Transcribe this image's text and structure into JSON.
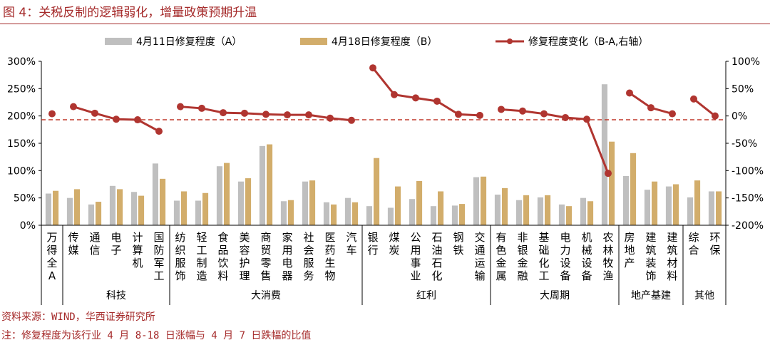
{
  "title": "图 4：关税反制的逻辑弱化，增量政策预期升温",
  "source": "资料来源：WIND，华西证券研究所",
  "note": "注：修复程度为该行业 4 月 8-18 日涨幅与 4 月 7 日跌幅的比值",
  "colors": {
    "s1": "#bfbfbf",
    "s2": "#d2ad6b",
    "line": "#b03530",
    "ref": "#c0392b",
    "title": "#a52a2a"
  },
  "chart_data": {
    "type": "bar",
    "legend_position": "top",
    "grid": false,
    "categories": [
      "万得全A",
      "传媒",
      "通信",
      "电子",
      "计算机",
      "国防军工",
      "纺织服饰",
      "轻工制造",
      "食品饮料",
      "美容护理",
      "商贸零售",
      "家用电器",
      "社会服务",
      "医药生物",
      "汽车",
      "银行",
      "煤炭",
      "公用事业",
      "石油石化",
      "钢铁",
      "交通运输",
      "有色金属",
      "非银金融",
      "基础化工",
      "电力设备",
      "机械设备",
      "农林牧渔",
      "房地产",
      "建筑装饰",
      "建筑材料",
      "综合",
      "环保"
    ],
    "series": [
      {
        "name": "4月11日修复程度（A）",
        "axis": "left",
        "values": [
          58,
          50,
          38,
          72,
          61,
          113,
          45,
          45,
          108,
          80,
          145,
          44,
          80,
          42,
          50,
          35,
          32,
          48,
          35,
          36,
          88,
          56,
          46,
          51,
          38,
          50,
          258,
          90,
          65,
          71,
          51,
          62
        ]
      },
      {
        "name": "4月18日修复程度（B）",
        "axis": "left",
        "values": [
          63,
          66,
          43,
          66,
          54,
          85,
          62,
          59,
          114,
          86,
          148,
          46,
          82,
          38,
          42,
          123,
          71,
          81,
          62,
          39,
          89,
          68,
          55,
          55,
          35,
          44,
          153,
          132,
          80,
          75,
          82,
          62
        ]
      },
      {
        "name": "修复程度变化（B-A,右轴）",
        "type": "line",
        "axis": "right",
        "values": [
          4,
          17,
          5,
          -6,
          -7,
          -28,
          17,
          14,
          6,
          5,
          3,
          2,
          2,
          -4,
          -8,
          88,
          39,
          33,
          27,
          3,
          1,
          12,
          9,
          4,
          -3,
          -6,
          -105,
          42,
          15,
          4,
          31,
          0
        ]
      }
    ],
    "line_groups": [
      [
        0,
        0
      ],
      [
        1,
        5
      ],
      [
        6,
        14
      ],
      [
        15,
        20
      ],
      [
        21,
        26
      ],
      [
        27,
        29
      ],
      [
        30,
        31
      ]
    ],
    "reference_line": {
      "axis": "right",
      "value": -7
    },
    "ylim_left": [
      0,
      300
    ],
    "yticks_left": [
      "0%",
      "50%",
      "100%",
      "150%",
      "200%",
      "250%",
      "300%"
    ],
    "ylim_right": [
      -200,
      100
    ],
    "yticks_right": [
      "-200%",
      "-150%",
      "-100%",
      "-50%",
      "0%",
      "50%",
      "100%"
    ],
    "x_labels": [
      [
        "万",
        "得",
        "全",
        "A"
      ],
      [
        "传",
        "媒"
      ],
      [
        "通",
        "信"
      ],
      [
        "电",
        "子"
      ],
      [
        "计",
        "算",
        "机"
      ],
      [
        "国",
        "防",
        "军",
        "工"
      ],
      [
        "纺",
        "织",
        "服",
        "饰"
      ],
      [
        "轻",
        "工",
        "制",
        "造"
      ],
      [
        "食",
        "品",
        "饮",
        "料"
      ],
      [
        "美",
        "容",
        "护",
        "理"
      ],
      [
        "商",
        "贸",
        "零",
        "售"
      ],
      [
        "家",
        "用",
        "电",
        "器"
      ],
      [
        "社",
        "会",
        "服",
        "务"
      ],
      [
        "医",
        "药",
        "生",
        "物"
      ],
      [
        "汽",
        "车"
      ],
      [
        "银",
        "行"
      ],
      [
        "煤",
        "炭"
      ],
      [
        "公",
        "用",
        "事",
        "业"
      ],
      [
        "石",
        "油",
        "石",
        "化"
      ],
      [
        "钢",
        "铁"
      ],
      [
        "交",
        "通",
        "运",
        "输"
      ],
      [
        "有",
        "色",
        "金",
        "属"
      ],
      [
        "非",
        "银",
        "金",
        "融"
      ],
      [
        "基",
        "础",
        "化",
        "工"
      ],
      [
        "电",
        "力",
        "设",
        "备"
      ],
      [
        "机",
        "械",
        "设",
        "备"
      ],
      [
        "农",
        "林",
        "牧",
        "渔"
      ],
      [
        "房",
        "地",
        "产"
      ],
      [
        "建",
        "筑",
        "装",
        "饰"
      ],
      [
        "建",
        "筑",
        "材",
        "料"
      ],
      [
        "综",
        "合"
      ],
      [
        "环",
        "保"
      ]
    ],
    "groups": [
      {
        "name": "",
        "start": 0,
        "end": 0
      },
      {
        "name": "科技",
        "start": 1,
        "end": 5
      },
      {
        "name": "大消费",
        "start": 6,
        "end": 14
      },
      {
        "name": "红利",
        "start": 15,
        "end": 20
      },
      {
        "name": "大周期",
        "start": 21,
        "end": 26
      },
      {
        "name": "地产基建",
        "start": 27,
        "end": 29
      },
      {
        "name": "其他",
        "start": 30,
        "end": 31
      }
    ]
  }
}
